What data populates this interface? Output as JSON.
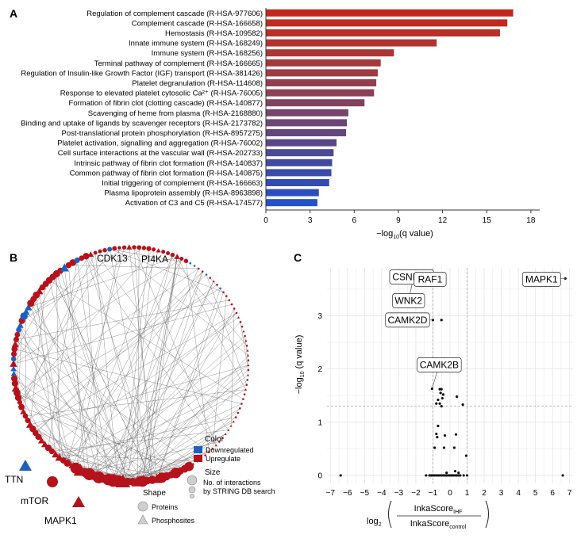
{
  "panels": {
    "a": "A",
    "b": "B",
    "c": "C"
  },
  "chart_data": [
    {
      "type": "bar",
      "orientation": "horizontal",
      "panel": "A",
      "categories": [
        "Regulation of complement cascade (R-HSA-977606)",
        "Complement cascade (R-HSA-166658)",
        "Hemostasis (R-HSA-109582)",
        "Innate immune system (R-HSA-168249)",
        "Immune system (R-HSA-168256)",
        "Terminal pathway of complement (R-HSA-166665)",
        "Regulation of Insulin-like Growth Factor (IGF) transport (R-HSA-381426)",
        "Platelet degranulation  (R-HSA-114608)",
        "Response to elevated platelet cytosolic Ca²⁺ (R-HSA-76005)",
        "Formation of fibrin clot (clotting cascade)  (R-HSA-140877)",
        "Scavenging of heme from plasma (R-HSA-2168880)",
        "Binding and uptake of ligands by scavenger receptors (R-HSA-2173782)",
        "Post-translational protein phosphorylation (R-HSA-8957275)",
        "Platelet activation, signalling and aggregation (R-HSA-76002)",
        "Cell surface interactions at the vascular wall (R-HSA-202733)",
        "Intrinsic pathway of fibrin clot formation  (R-HSA-140837)",
        "Common pathway of fibrin clot formation  (R-HSA-140875)",
        "Initial triggering of complement (R-HSA-166663)",
        "Plasma lipoprotein assembly (R-HSA-8963898)",
        "Activation of C3 and C5 (R-HSA-174577)"
      ],
      "values": [
        16.8,
        16.4,
        15.9,
        11.6,
        8.7,
        7.8,
        7.6,
        7.5,
        7.35,
        6.7,
        5.6,
        5.5,
        5.45,
        4.8,
        4.6,
        4.5,
        4.45,
        4.3,
        3.6,
        3.5
      ],
      "bar_colors": [
        "#c0281c",
        "#bd2b21",
        "#b92e27",
        "#b1332d",
        "#aa3634",
        "#a4393b",
        "#9c3c44",
        "#933e4e",
        "#8a4056",
        "#81425f",
        "#77436a",
        "#6d4574",
        "#62467d",
        "#574788",
        "#4b4993",
        "#414a9d",
        "#3a4ba8",
        "#344cb2",
        "#2c4dbd",
        "#2650c7"
      ],
      "xticks": [
        0,
        3,
        6,
        9,
        12,
        15,
        18
      ],
      "xlim": [
        0,
        18.6
      ],
      "xlabel": "−log10(q value)",
      "xlabel_main": "−log",
      "xlabel_sub": "10",
      "xlabel_tail": "(q value)"
    },
    {
      "type": "network",
      "panel": "B",
      "gene_labels": [
        "CDK13",
        "PI4KA",
        "TTN",
        "mTOR",
        "MAPK1"
      ],
      "legend": {
        "color_title": "Color",
        "color_items": [
          {
            "label": "Downregulated",
            "color": "#1f5fbf"
          },
          {
            "label": "Upregulate",
            "color": "#b5121b"
          }
        ],
        "size_title": "Size",
        "size_desc_1": "No. of interactions",
        "size_desc_2": "by STRING DB search",
        "shape_title": "Shape",
        "shape_items": [
          "Proteins",
          "Phosphosites"
        ]
      },
      "colors": {
        "down": "#1f5fbf",
        "up": "#b5121b",
        "edge": "#555555"
      }
    },
    {
      "type": "scatter",
      "panel": "C",
      "xticks": [
        -7,
        -6,
        -5,
        -4,
        -3,
        -2,
        -1,
        0,
        1,
        2,
        3,
        4,
        5,
        6,
        7
      ],
      "xtick_labels": [
        "−7",
        "−6",
        "−5",
        "−4",
        "−3",
        "−2",
        "−1",
        "0",
        "1",
        "2",
        "3",
        "4",
        "5",
        "6",
        "7"
      ],
      "yticks": [
        0,
        1,
        2,
        3
      ],
      "xlim": [
        -7.2,
        7.2
      ],
      "ylim": [
        -0.15,
        3.9
      ],
      "ylabel_main": "−log",
      "ylabel_sub": "10",
      "ylabel_tail": " (q value)",
      "xlabel_log": "log",
      "xlabel_log_sub": "2",
      "xlabel_num": "InkaScore",
      "xlabel_num_sub": "IHF",
      "xlabel_den": "InkaScore",
      "xlabel_den_sub": "control",
      "threshold_y": 1.3,
      "threshold_x": [
        -1,
        1
      ],
      "points": [
        [
          -6.4,
          0
        ],
        [
          6.6,
          0
        ],
        [
          6.75,
          3.7
        ],
        [
          -2.15,
          3.7
        ],
        [
          -1.35,
          3.7
        ],
        [
          -0.6,
          3.7
        ],
        [
          -1.0,
          2.92
        ],
        [
          -0.5,
          2.92
        ],
        [
          -1.05,
          1.63
        ],
        [
          -0.6,
          1.62
        ],
        [
          -0.5,
          1.62
        ],
        [
          -0.55,
          1.55
        ],
        [
          -0.4,
          1.52
        ],
        [
          -0.45,
          1.45
        ],
        [
          -0.7,
          1.42
        ],
        [
          0.4,
          1.48
        ],
        [
          -0.8,
          1.35
        ],
        [
          -0.6,
          1.35
        ],
        [
          -0.5,
          1.3
        ],
        [
          0.75,
          1.33
        ],
        [
          -0.7,
          0.93
        ],
        [
          -0.8,
          0.78
        ],
        [
          -0.75,
          0.72
        ],
        [
          -0.3,
          0.75
        ],
        [
          0.35,
          0.77
        ],
        [
          -0.9,
          0.52
        ],
        [
          -0.35,
          0.52
        ],
        [
          0.25,
          0.52
        ],
        [
          0.95,
          0.37
        ],
        [
          -1.4,
          0
        ],
        [
          -1.2,
          0
        ],
        [
          -1.1,
          0
        ],
        [
          -1.0,
          0
        ],
        [
          -0.9,
          0
        ],
        [
          -0.8,
          0
        ],
        [
          -0.7,
          0
        ],
        [
          -0.6,
          0
        ],
        [
          -0.5,
          0
        ],
        [
          -0.4,
          0
        ],
        [
          -0.3,
          0
        ],
        [
          -0.2,
          0
        ],
        [
          -0.1,
          0
        ],
        [
          0.0,
          0
        ],
        [
          0.1,
          0
        ],
        [
          0.2,
          0
        ],
        [
          0.3,
          0
        ],
        [
          0.4,
          0
        ],
        [
          0.5,
          0
        ],
        [
          0.6,
          0
        ],
        [
          0.8,
          0
        ],
        [
          1.0,
          0
        ],
        [
          -0.2,
          0.05
        ],
        [
          0.3,
          0.08
        ],
        [
          0.5,
          0.05
        ]
      ],
      "labels": [
        {
          "text": "CSNK1D",
          "x": -2.15,
          "y": 3.7
        },
        {
          "text": "WNK2",
          "x": -2.15,
          "y": 3.7
        },
        {
          "text": "RAF1",
          "x": -1.35,
          "y": 3.7
        },
        {
          "text": "MAPK1",
          "x": 6.75,
          "y": 3.7
        },
        {
          "text": "CAMK2D",
          "x": -1.0,
          "y": 2.92
        },
        {
          "text": "CAMK2B",
          "x": -1.05,
          "y": 1.63
        }
      ]
    }
  ]
}
